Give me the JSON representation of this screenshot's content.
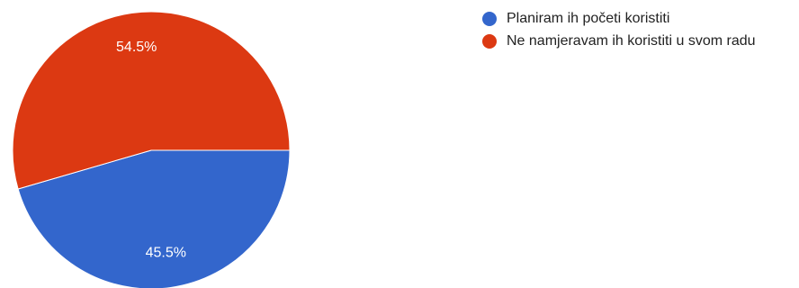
{
  "chart_data": {
    "type": "pie",
    "categories": [
      "Planiram ih početi koristiti",
      "Ne namjeravam ih koristiti u svom radu"
    ],
    "values": [
      45.5,
      54.5
    ],
    "labels": [
      "45.5%",
      "54.5%"
    ],
    "colors": [
      "#3366cc",
      "#dc3912"
    ],
    "legend_position": "right"
  }
}
